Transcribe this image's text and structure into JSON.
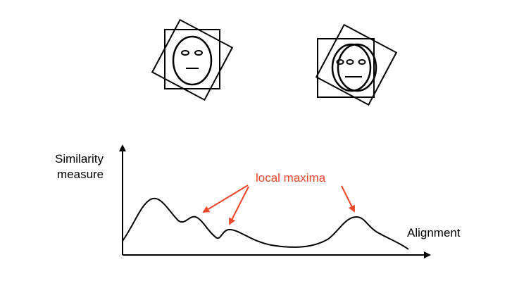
{
  "axis": {
    "y_label_line1": "Similarity",
    "y_label_line2": "measure",
    "x_label": "Alignment"
  },
  "annotation": {
    "text": "local maxima",
    "color": "#e8472b"
  },
  "colors": {
    "ink": "#000000"
  }
}
